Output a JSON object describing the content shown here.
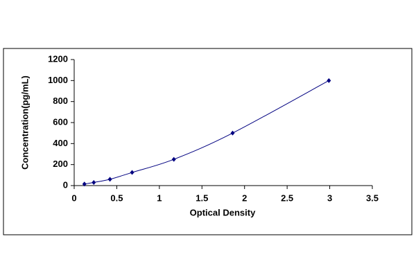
{
  "chart_data": {
    "type": "scatter-line",
    "x_label": "Optical Density",
    "y_label": "Concentration(pg/mL)",
    "x": [
      0.12,
      0.23,
      0.42,
      0.68,
      1.17,
      1.86,
      2.99
    ],
    "values": [
      15,
      30,
      60,
      125,
      250,
      500,
      1000
    ],
    "color": "#000080",
    "line_color": "#000080",
    "xlim": [
      0,
      3.5
    ],
    "xticks": [
      0,
      0.5,
      1,
      1.5,
      2,
      2.5,
      3,
      3.5
    ],
    "ylim": [
      0,
      1200
    ],
    "yticks": [
      0,
      200,
      400,
      600,
      800,
      1000,
      1200
    ],
    "grid": false
  }
}
